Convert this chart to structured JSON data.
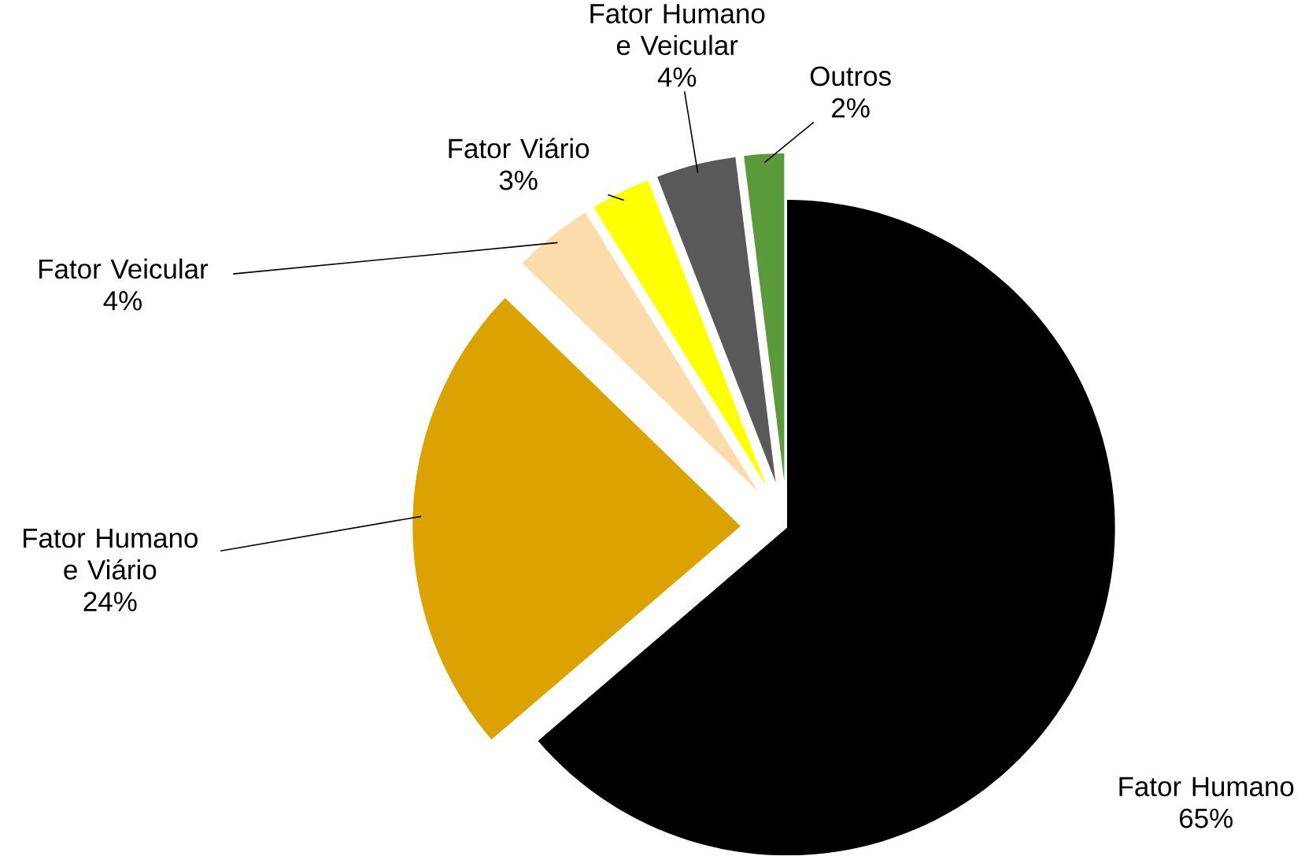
{
  "chart_data": {
    "type": "pie",
    "categories": [
      "Fator Humano",
      "Fator Humano e Viário",
      "Fator Veicular",
      "Fator Viário",
      "Fator Humano e Veicular",
      "Outros"
    ],
    "values": [
      65,
      24,
      4,
      3,
      4,
      2
    ],
    "value_labels": [
      "65%",
      "24%",
      "4%",
      "3%",
      "4%",
      "2%"
    ],
    "colors": [
      "#000000",
      "#dba200",
      "#fcdcaa",
      "#ffff00",
      "#595959",
      "#5a9a3a"
    ],
    "legend": false
  }
}
